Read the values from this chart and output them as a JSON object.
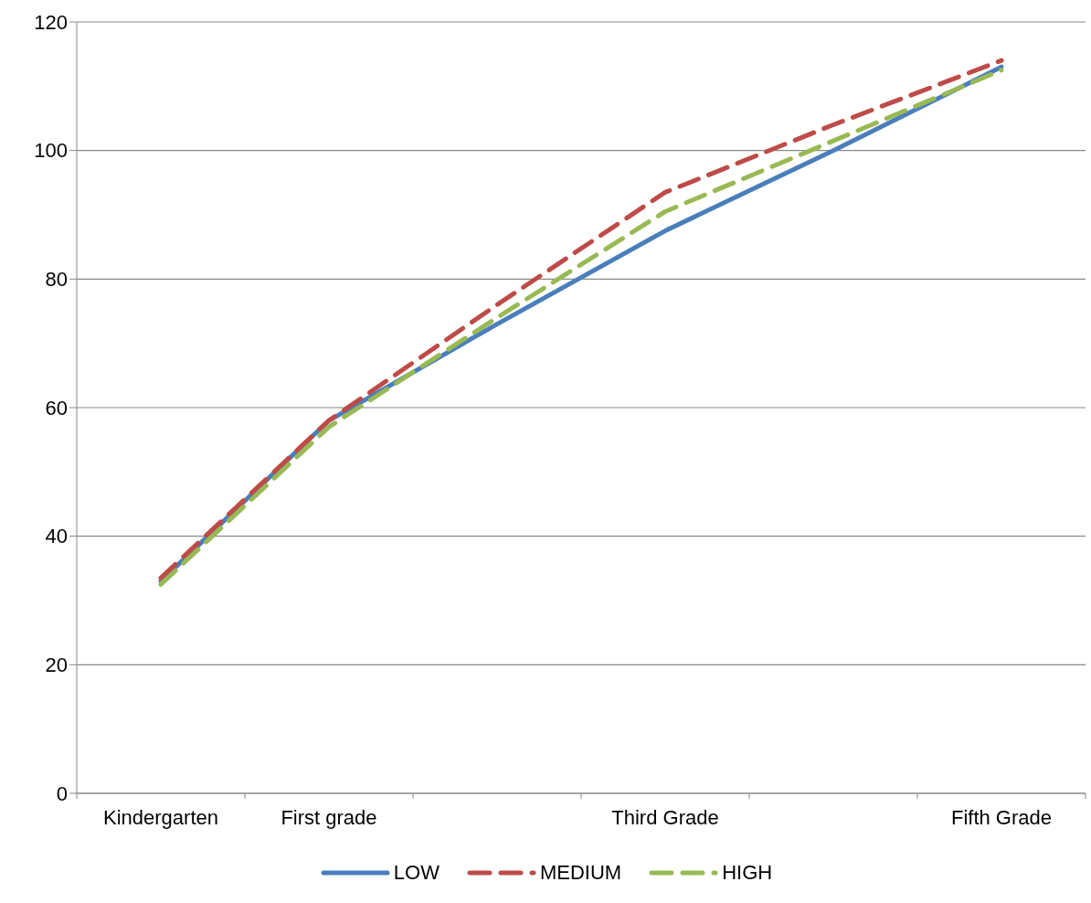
{
  "chart_data": {
    "type": "line",
    "categories": [
      "Kindergarten",
      "First grade",
      null,
      "Third Grade",
      null,
      "Fifth Grade"
    ],
    "series": [
      {
        "name": "LOW",
        "color": "#4a7ebb",
        "line_style": "solid",
        "values": [
          33,
          58,
          73,
          87.5,
          100,
          113
        ]
      },
      {
        "name": "MEDIUM",
        "color": "#be4b48",
        "line_style": "dashed",
        "values": [
          33.5,
          58,
          76,
          93.5,
          104,
          114
        ]
      },
      {
        "name": "HIGH",
        "color": "#98b954",
        "line_style": "dashed",
        "values": [
          32.5,
          57,
          74,
          90.5,
          101.5,
          112.5
        ]
      }
    ],
    "ylim": [
      0,
      120
    ],
    "yticks": [
      0,
      20,
      40,
      60,
      80,
      100,
      120
    ],
    "grid": "y",
    "legend": "bottom",
    "marker": "none"
  }
}
